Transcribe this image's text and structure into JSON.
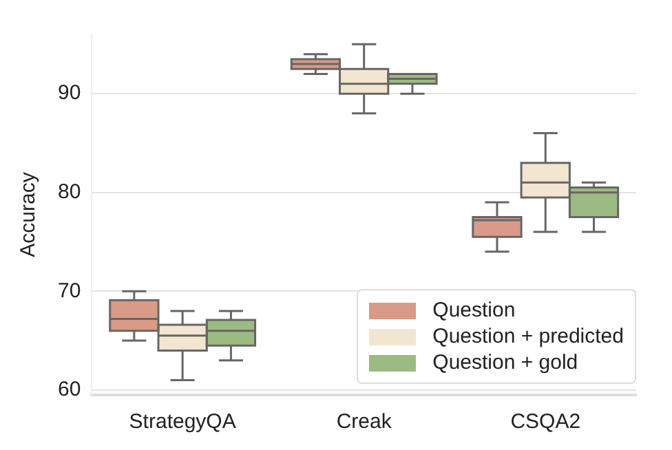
{
  "chart_data": {
    "type": "box",
    "ylabel": "Accuracy",
    "categories": [
      "StrategyQA",
      "Creak",
      "CSQA2"
    ],
    "ylim": [
      59.5,
      96
    ],
    "yticks": [
      60,
      70,
      80,
      90
    ],
    "grid": "y",
    "legend": "bottom right",
    "series": [
      {
        "name": "Question",
        "color": "#d99a87",
        "boxes": [
          {
            "low": 65,
            "q1": 66,
            "median": 67.2,
            "q3": 69.1,
            "high": 70
          },
          {
            "low": 92,
            "q1": 92.5,
            "median": 93,
            "q3": 93.5,
            "high": 94
          },
          {
            "low": 74,
            "q1": 75.5,
            "median": 77.2,
            "q3": 77.5,
            "high": 79
          }
        ]
      },
      {
        "name": "Question + predicted",
        "color": "#f2e6d0",
        "boxes": [
          {
            "low": 61,
            "q1": 64,
            "median": 65.5,
            "q3": 66.6,
            "high": 68
          },
          {
            "low": 88,
            "q1": 90,
            "median": 91,
            "q3": 92.5,
            "high": 95
          },
          {
            "low": 76,
            "q1": 79.5,
            "median": 81,
            "q3": 83,
            "high": 86
          }
        ]
      },
      {
        "name": "Question + gold",
        "color": "#9cbb82",
        "boxes": [
          {
            "low": 63,
            "q1": 64.5,
            "median": 66,
            "q3": 67.1,
            "high": 68
          },
          {
            "low": 90,
            "q1": 91,
            "median": 91.5,
            "q3": 92,
            "high": 92
          },
          {
            "low": 76,
            "q1": 77.5,
            "median": 80,
            "q3": 80.5,
            "high": 81
          }
        ]
      }
    ]
  }
}
